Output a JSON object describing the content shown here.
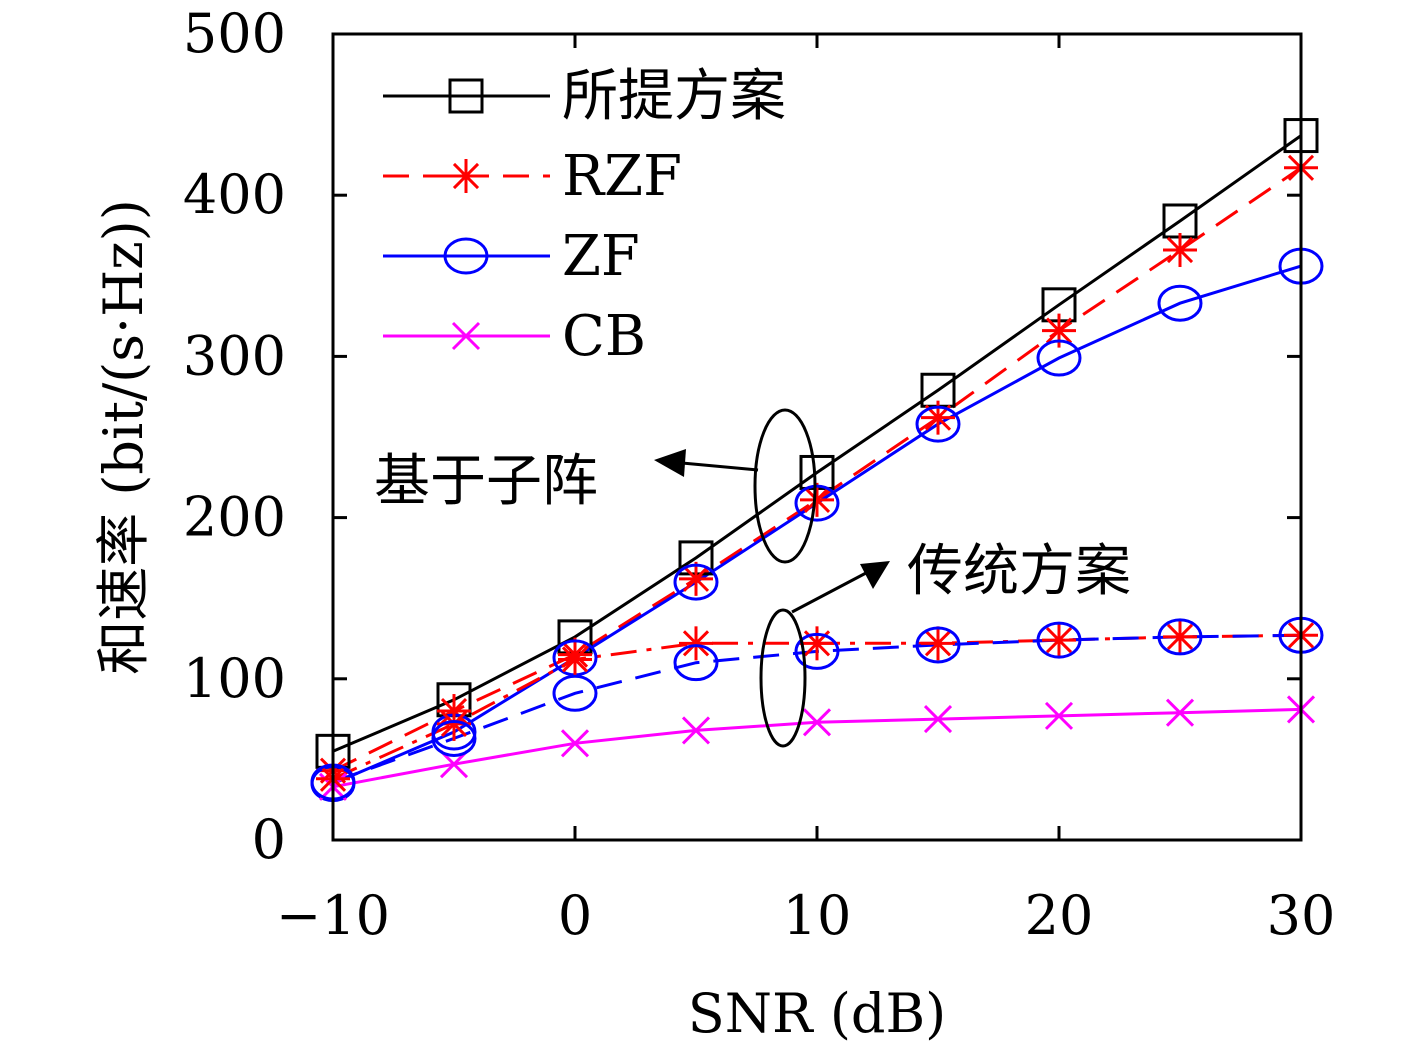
{
  "chart_data": {
    "type": "line",
    "xlabel": "SNR (dB)",
    "ylabel": "和速率 (bit/(s·Hz))",
    "xlim": [
      -10,
      30
    ],
    "ylim": [
      0,
      500
    ],
    "xticks": [
      "−10",
      "0",
      "10",
      "20",
      "30"
    ],
    "xtick_values": [
      -10,
      0,
      10,
      20,
      30
    ],
    "yticks": [
      "0",
      "100",
      "200",
      "300",
      "400",
      "500"
    ],
    "ytick_values": [
      0,
      100,
      200,
      300,
      400,
      500
    ],
    "grid": false,
    "legend_position": "top-left",
    "x": [
      -10,
      -5,
      0,
      5,
      10,
      15,
      20,
      25,
      30
    ],
    "series": [
      {
        "name": "所提方案",
        "group": "subarray",
        "color": "#000000",
        "marker": "square",
        "dash": "solid",
        "values": [
          55,
          87,
          126,
          175,
          228,
          279,
          332,
          384,
          437
        ]
      },
      {
        "name": "RZF",
        "group": "subarray",
        "color": "#ff0000",
        "marker": "asterisk",
        "dash": "dashed",
        "values": [
          43,
          80,
          115,
          162,
          211,
          262,
          316,
          366,
          417
        ]
      },
      {
        "name": "ZF",
        "group": "subarray",
        "color": "#0000ff",
        "marker": "circle",
        "dash": "solid",
        "values": [
          35,
          67,
          113,
          160,
          209,
          258,
          299,
          333,
          356
        ]
      },
      {
        "name": "CB",
        "group": "both",
        "color": "#ff00ff",
        "marker": "x",
        "dash": "solid",
        "values": [
          33,
          47,
          60,
          68,
          73,
          75,
          77,
          79,
          81
        ]
      },
      {
        "name": "RZF",
        "group": "conventional",
        "legend": false,
        "color": "#ff0000",
        "marker": "asterisk",
        "dash": "dashdot",
        "values": [
          38,
          72,
          112,
          122,
          122,
          122,
          124,
          126,
          127
        ]
      },
      {
        "name": "ZF",
        "group": "conventional",
        "legend": false,
        "color": "#0000ff",
        "marker": "circle",
        "dash": "dashed",
        "values": [
          36,
          63,
          91,
          110,
          117,
          121,
          124,
          126,
          127
        ]
      }
    ],
    "annotations": [
      {
        "text": "基于子阵"
      },
      {
        "text": "传统方案"
      }
    ]
  }
}
